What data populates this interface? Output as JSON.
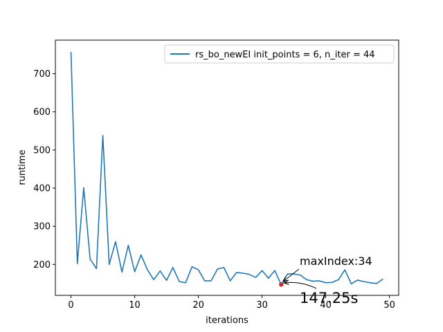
{
  "chart_data": {
    "type": "line",
    "xlabel": "iterations",
    "ylabel": "runtime",
    "xlim": [
      -2.45,
      51.45
    ],
    "ylim": [
      119,
      788
    ],
    "x_ticks": [
      0,
      10,
      20,
      30,
      40,
      50
    ],
    "y_ticks": [
      200,
      300,
      400,
      500,
      600,
      700
    ],
    "grid": false,
    "legend_position": "top-right",
    "series": [
      {
        "name": "rs_bo_newEI  init_points = 6, n_iter = 44",
        "color": "#1f77b4",
        "x": [
          0,
          1,
          2,
          3,
          4,
          5,
          6,
          7,
          8,
          9,
          10,
          11,
          12,
          13,
          14,
          15,
          16,
          17,
          18,
          19,
          20,
          21,
          22,
          23,
          24,
          25,
          26,
          27,
          28,
          29,
          30,
          31,
          32,
          33,
          34,
          35,
          36,
          37,
          38,
          39,
          40,
          41,
          42,
          43,
          44,
          45,
          46,
          47,
          48,
          49
        ],
        "values": [
          757,
          202,
          401,
          214,
          189,
          538,
          200,
          260,
          180,
          250,
          181,
          225,
          186,
          160,
          183,
          158,
          192,
          155,
          152,
          194,
          186,
          157,
          157,
          188,
          192,
          157,
          179,
          177,
          174,
          166,
          184,
          164,
          184,
          147.25,
          175,
          175,
          172,
          160,
          156,
          157,
          152,
          153,
          160,
          186,
          149,
          159,
          155,
          152,
          150,
          162
        ]
      }
    ],
    "highlight_point": {
      "x": 33,
      "y": 147.25,
      "color": "#d62728"
    },
    "annotations": {
      "max_index": "maxIndex:34",
      "runtime_value": "147.25s"
    }
  }
}
